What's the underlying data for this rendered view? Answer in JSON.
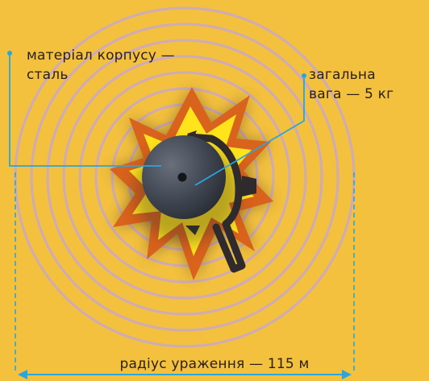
{
  "callouts": {
    "material": [
      "матеріал корпусу —",
      "сталь"
    ],
    "weight": [
      "загальна",
      "вага — 5 кг"
    ]
  },
  "dimension": {
    "radius_label": "радіус ураження — 115 м"
  },
  "colors": {
    "background": "#f3c13e",
    "leader_line": "#2aa6dc",
    "ring": "#c9a8c8",
    "burst_outer": "#d9621c",
    "burst_inner": "#ffe41c",
    "grenade_body": "#3f4550",
    "text": "#2a1f17"
  },
  "icons": {
    "center": "grenade-icon",
    "burst": "explosion-burst-icon"
  }
}
